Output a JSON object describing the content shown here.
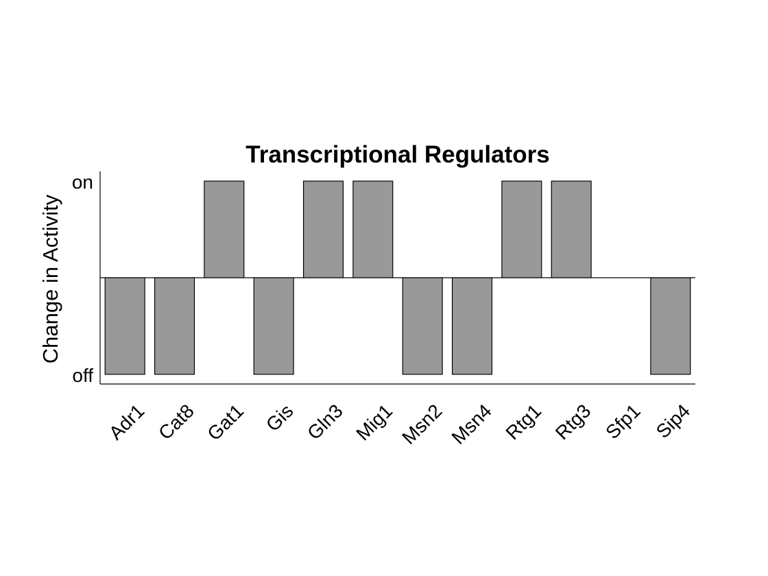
{
  "chart_data": {
    "type": "bar",
    "title": "Transcriptional Regulators",
    "xlabel": "",
    "ylabel": "Change in Activity",
    "categories": [
      "Adr1",
      "Cat8",
      "Gat1",
      "Gis",
      "Gln3",
      "Mig1",
      "Msn2",
      "Msn4",
      "Rtg1",
      "Rtg3",
      "Sfp1",
      "Sip4"
    ],
    "values": [
      -1,
      -1,
      1,
      -1,
      1,
      1,
      -1,
      -1,
      1,
      1,
      0,
      -1
    ],
    "ylim": [
      -1.1,
      1.1
    ],
    "yticks": [
      -1,
      1
    ],
    "ytick_labels": [
      "off",
      "on"
    ],
    "baseline": 0,
    "bar_color": "#999999",
    "edge_color": "#000000",
    "grid": false,
    "legend": "none"
  }
}
